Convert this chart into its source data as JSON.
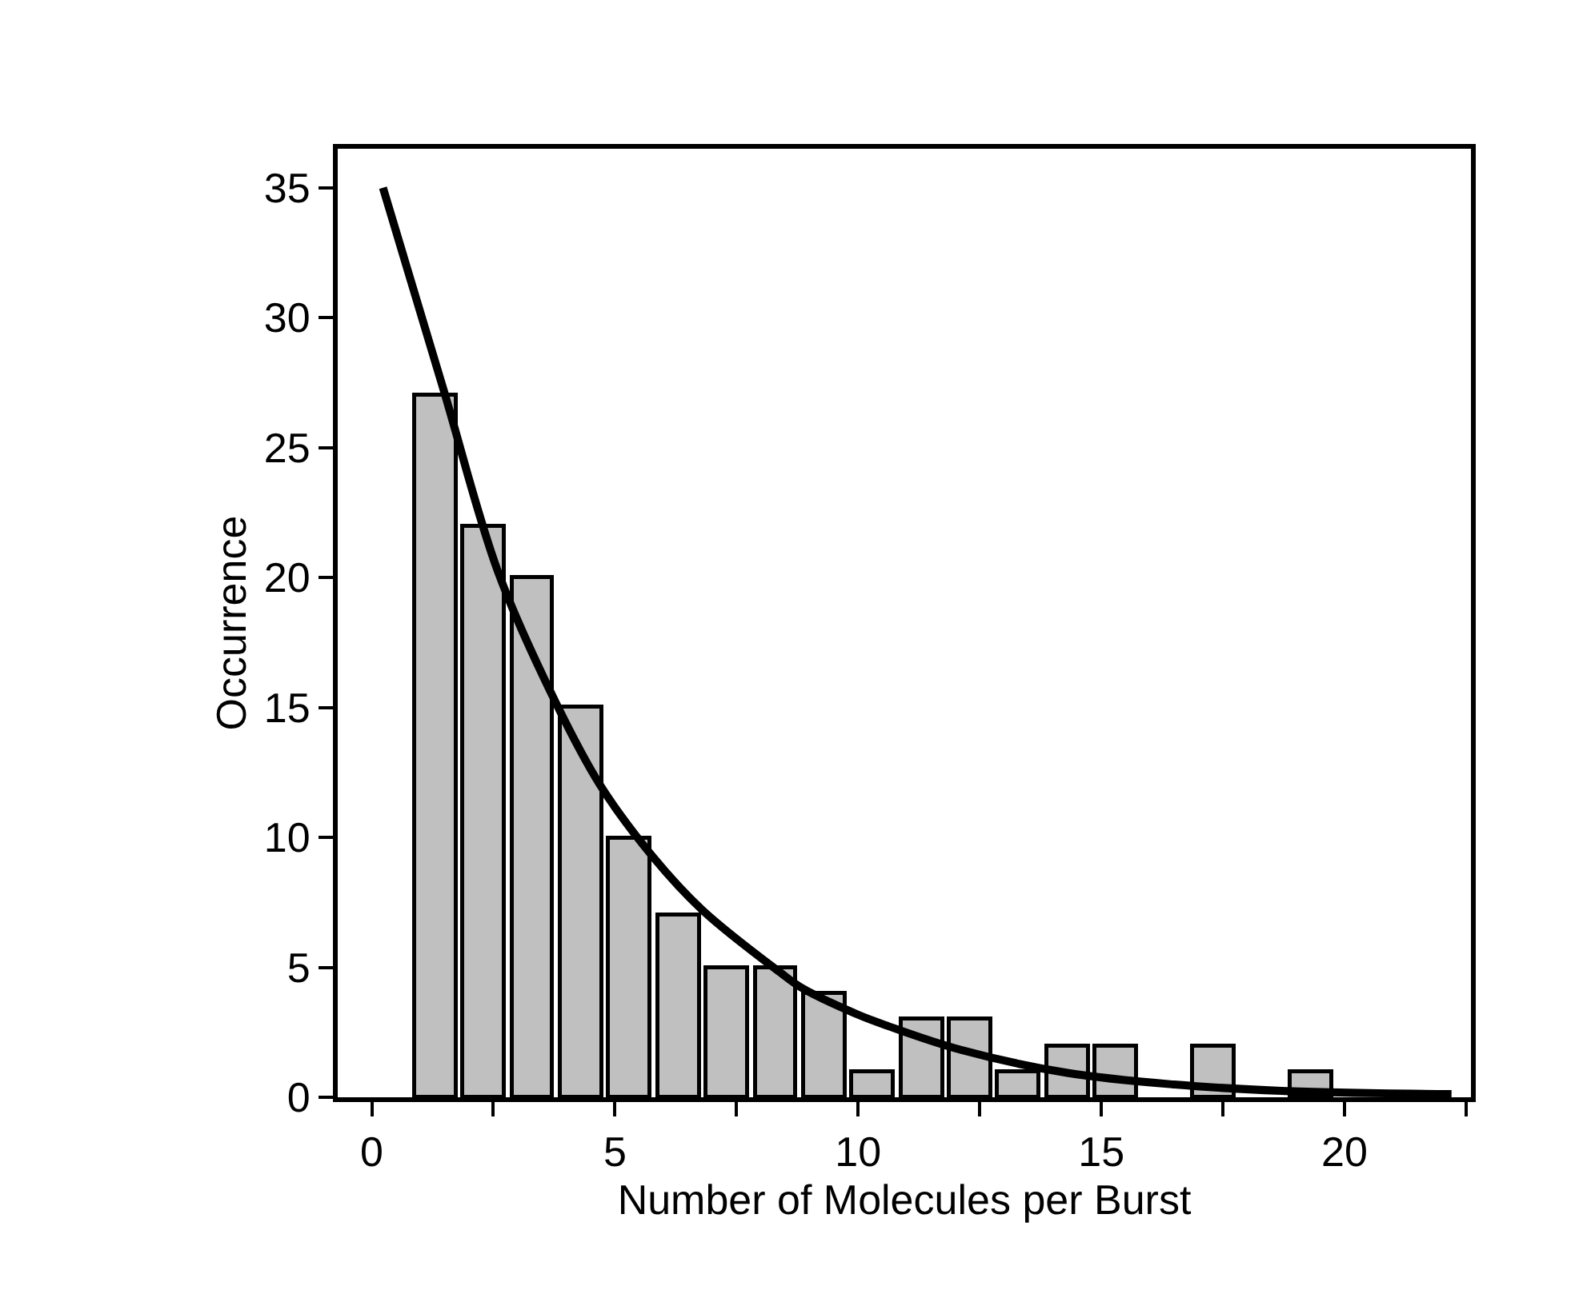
{
  "chart_data": {
    "type": "histogram",
    "xlabel": "Number of Molecules per Burst",
    "ylabel": "Occurrence",
    "bins": [
      0.8,
      1.8,
      2.8,
      3.8,
      4.8,
      5.8,
      6.8,
      7.8,
      8.8,
      9.8,
      10.8,
      11.8,
      12.8,
      13.8,
      14.8,
      15.8,
      16.8,
      17.8,
      18.8,
      19.8
    ],
    "values": [
      27,
      22,
      20,
      15,
      10,
      7,
      5,
      5,
      4,
      1,
      3,
      3,
      1,
      2,
      2,
      0,
      2,
      0,
      1
    ],
    "color": "#c0c0c0",
    "series": [
      {
        "type": "line",
        "color": "#000000",
        "x": [
          0.23,
          1.48,
          2.6,
          3.78,
          4.7,
          5.76,
          6.8,
          8.4,
          8.85,
          9.97,
          10.6,
          12.1,
          14.3,
          16.5,
          18.7,
          22.2
        ],
        "values": [
          35,
          27.2,
          20.2,
          15.2,
          12.0,
          9.3,
          7.2,
          4.8,
          4.2,
          3.2,
          2.75,
          1.83,
          0.94,
          0.49,
          0.25,
          0.12
        ]
      }
    ],
    "xlim": [
      -0.7,
      22.6
    ],
    "xticks": [
      0,
      {
        "value": 2.5,
        "label": null
      },
      5,
      {
        "value": 7.5,
        "label": null
      },
      10,
      {
        "value": 12.5,
        "label": null
      },
      15,
      {
        "value": 17.5,
        "label": null
      },
      20,
      {
        "value": 22.5,
        "label": null
      }
    ],
    "ylim": [
      0,
      36.5
    ],
    "yticks": [
      0,
      5,
      10,
      15,
      20,
      25,
      30,
      35
    ],
    "grid": false,
    "marker": "none",
    "line_style": "solid"
  }
}
